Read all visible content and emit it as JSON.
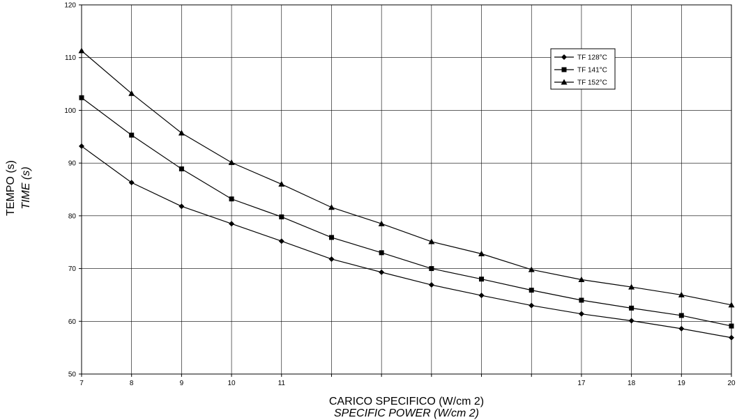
{
  "chart_data": {
    "type": "line",
    "x_ticks": [
      "7",
      "8",
      "9",
      "10",
      "11",
      "17",
      "18",
      "19",
      "20"
    ],
    "x_tick_values": [
      7,
      8,
      9,
      10,
      11,
      17,
      18,
      19,
      20
    ],
    "x_range": [
      7,
      20
    ],
    "y_ticks": [
      "50",
      "60",
      "70",
      "80",
      "90",
      "100",
      "110",
      "120"
    ],
    "y_range": [
      50,
      120
    ],
    "ylim": [
      50,
      120
    ],
    "xlabel": "CARICO SPECIFICO (W/cm 2)",
    "xlabel_en": "SPECIFIC POWER (W/cm 2)",
    "ylabel": "TEMPO (s)",
    "ylabel_en": "TIME (s)",
    "grid": true,
    "legend_position": "top-right",
    "series": [
      {
        "name": "TF 128°C",
        "marker": "diamond",
        "x": [
          7,
          8,
          9,
          10,
          11,
          12,
          13,
          14,
          15,
          16,
          17,
          18,
          19,
          20
        ],
        "values": [
          93.2,
          86.3,
          81.8,
          78.5,
          75.2,
          71.8,
          69.3,
          66.9,
          64.9,
          63.0,
          61.4,
          60.1,
          58.6,
          56.9
        ]
      },
      {
        "name": "TF 141°C",
        "marker": "square",
        "x": [
          7,
          8,
          9,
          10,
          11,
          12,
          13,
          14,
          15,
          16,
          17,
          18,
          19,
          20
        ],
        "values": [
          102.4,
          95.3,
          88.9,
          83.2,
          79.8,
          75.9,
          73.0,
          70.0,
          68.0,
          65.9,
          64.0,
          62.5,
          61.1,
          59.1
        ]
      },
      {
        "name": "TF 152°C",
        "marker": "triangle",
        "x": [
          7,
          8,
          9,
          10,
          11,
          12,
          13,
          14,
          15,
          16,
          17,
          18,
          19,
          20
        ],
        "values": [
          111.3,
          103.2,
          95.7,
          90.1,
          86.0,
          81.6,
          78.5,
          75.1,
          72.8,
          69.8,
          67.9,
          66.5,
          65.0,
          63.1
        ]
      }
    ]
  }
}
